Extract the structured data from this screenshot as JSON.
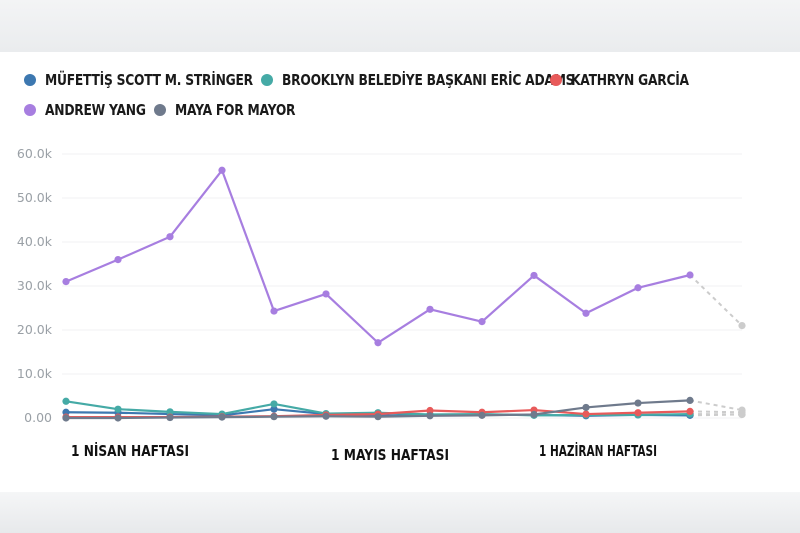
{
  "chart_data": {
    "type": "line",
    "title": "",
    "xlabel": "",
    "ylabel": "",
    "ylim": [
      0,
      60000
    ],
    "y_ticks": [
      {
        "value": 0,
        "label": "0.00"
      },
      {
        "value": 10000,
        "label": "10.0k"
      },
      {
        "value": 20000,
        "label": "20.0k"
      },
      {
        "value": 30000,
        "label": "30.0k"
      },
      {
        "value": 40000,
        "label": "40.0k"
      },
      {
        "value": 50000,
        "label": "50.0k"
      },
      {
        "value": 60000,
        "label": "60.0k"
      }
    ],
    "x_tick_labels": [
      {
        "index": 1,
        "label": "1 Nisan haftası"
      },
      {
        "index": 6,
        "label": "1 Mayıs haftası"
      },
      {
        "index": 10,
        "label": "1 Haziran haftası"
      }
    ],
    "x_count": 14,
    "grid": true,
    "legend_position": "top-left",
    "dashed_last_segment": true,
    "dashed_color": "#cccccc",
    "series": [
      {
        "name": "Müfettiş Scott M. Stringer",
        "color": "#3d78b0",
        "values": [
          1300,
          1200,
          900,
          600,
          2000,
          900,
          500,
          700,
          800,
          700,
          500,
          700,
          600,
          800
        ]
      },
      {
        "name": "Brooklyn Belediye Başkanı Eric Adams",
        "color": "#45aaa6",
        "values": [
          3800,
          2000,
          1400,
          900,
          3200,
          1000,
          1200,
          800,
          900,
          600,
          700,
          700,
          900,
          800
        ]
      },
      {
        "name": "Kathryn Garcia",
        "color": "#e85a5a",
        "values": [
          200,
          200,
          200,
          300,
          400,
          700,
          900,
          1700,
          1300,
          1800,
          900,
          1200,
          1500,
          1300
        ]
      },
      {
        "name": "Andrew Yang",
        "color": "#a77ee0",
        "values": [
          31000,
          36000,
          41200,
          56300,
          24300,
          28200,
          17100,
          24700,
          21900,
          32400,
          23800,
          29600,
          32500,
          21000
        ]
      },
      {
        "name": "Maya for Mayor",
        "color": "#6f7a8c",
        "values": [
          0,
          0,
          100,
          200,
          300,
          400,
          300,
          500,
          600,
          800,
          2400,
          3400,
          4000,
          1800
        ]
      }
    ]
  }
}
